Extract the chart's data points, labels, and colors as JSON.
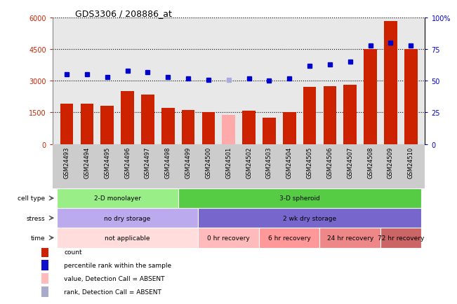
{
  "title": "GDS3306 / 208886_at",
  "samples": [
    "GSM24493",
    "GSM24494",
    "GSM24495",
    "GSM24496",
    "GSM24497",
    "GSM24498",
    "GSM24499",
    "GSM24500",
    "GSM24501",
    "GSM24502",
    "GSM24503",
    "GSM24504",
    "GSM24505",
    "GSM24506",
    "GSM24507",
    "GSM24508",
    "GSM24509",
    "GSM24510"
  ],
  "bar_values": [
    1900,
    1900,
    1800,
    2500,
    2350,
    1700,
    1600,
    1500,
    1380,
    1580,
    1250,
    1500,
    2700,
    2750,
    2800,
    4500,
    5850,
    4500
  ],
  "bar_colors": [
    "#cc2200",
    "#cc2200",
    "#cc2200",
    "#cc2200",
    "#cc2200",
    "#cc2200",
    "#cc2200",
    "#cc2200",
    "#ffaaaa",
    "#cc2200",
    "#cc2200",
    "#cc2200",
    "#cc2200",
    "#cc2200",
    "#cc2200",
    "#cc2200",
    "#cc2200",
    "#cc2200"
  ],
  "dot_values": [
    55,
    55,
    53,
    58,
    57,
    53,
    52,
    51,
    51,
    52,
    50,
    52,
    62,
    63,
    65,
    78,
    80,
    78
  ],
  "dot_colors": [
    "#0000cc",
    "#0000cc",
    "#0000cc",
    "#0000cc",
    "#0000cc",
    "#0000cc",
    "#0000cc",
    "#0000cc",
    "#aaaadd",
    "#0000cc",
    "#0000cc",
    "#0000cc",
    "#0000cc",
    "#0000cc",
    "#0000cc",
    "#0000cc",
    "#0000cc",
    "#0000cc"
  ],
  "ylim_left": [
    0,
    6000
  ],
  "ylim_right": [
    0,
    100
  ],
  "yticks_left": [
    0,
    1500,
    3000,
    4500,
    6000
  ],
  "yticks_right": [
    0,
    25,
    50,
    75,
    100
  ],
  "cell_type_labels": [
    {
      "text": "2-D monolayer",
      "start": 0,
      "end": 6,
      "color": "#99ee88"
    },
    {
      "text": "3-D spheroid",
      "start": 6,
      "end": 18,
      "color": "#55cc44"
    }
  ],
  "stress_labels": [
    {
      "text": "no dry storage",
      "start": 0,
      "end": 7,
      "color": "#bbaaee"
    },
    {
      "text": "2 wk dry storage",
      "start": 7,
      "end": 18,
      "color": "#7766cc"
    }
  ],
  "time_labels": [
    {
      "text": "not applicable",
      "start": 0,
      "end": 7,
      "color": "#ffdddd"
    },
    {
      "text": "0 hr recovery",
      "start": 7,
      "end": 10,
      "color": "#ffbbbb"
    },
    {
      "text": "6 hr recovery",
      "start": 10,
      "end": 13,
      "color": "#ff9999"
    },
    {
      "text": "24 hr recovery",
      "start": 13,
      "end": 16,
      "color": "#ee8888"
    },
    {
      "text": "72 hr recovery",
      "start": 16,
      "end": 18,
      "color": "#cc6666"
    }
  ],
  "legend_items": [
    {
      "label": "count",
      "color": "#cc2200"
    },
    {
      "label": "percentile rank within the sample",
      "color": "#1111cc"
    },
    {
      "label": "value, Detection Call = ABSENT",
      "color": "#ffbbbb"
    },
    {
      "label": "rank, Detection Call = ABSENT",
      "color": "#aaaacc"
    }
  ],
  "plot_bg_color": "#e8e8e8",
  "label_area_bg": "#cccccc",
  "background_color": "#ffffff"
}
